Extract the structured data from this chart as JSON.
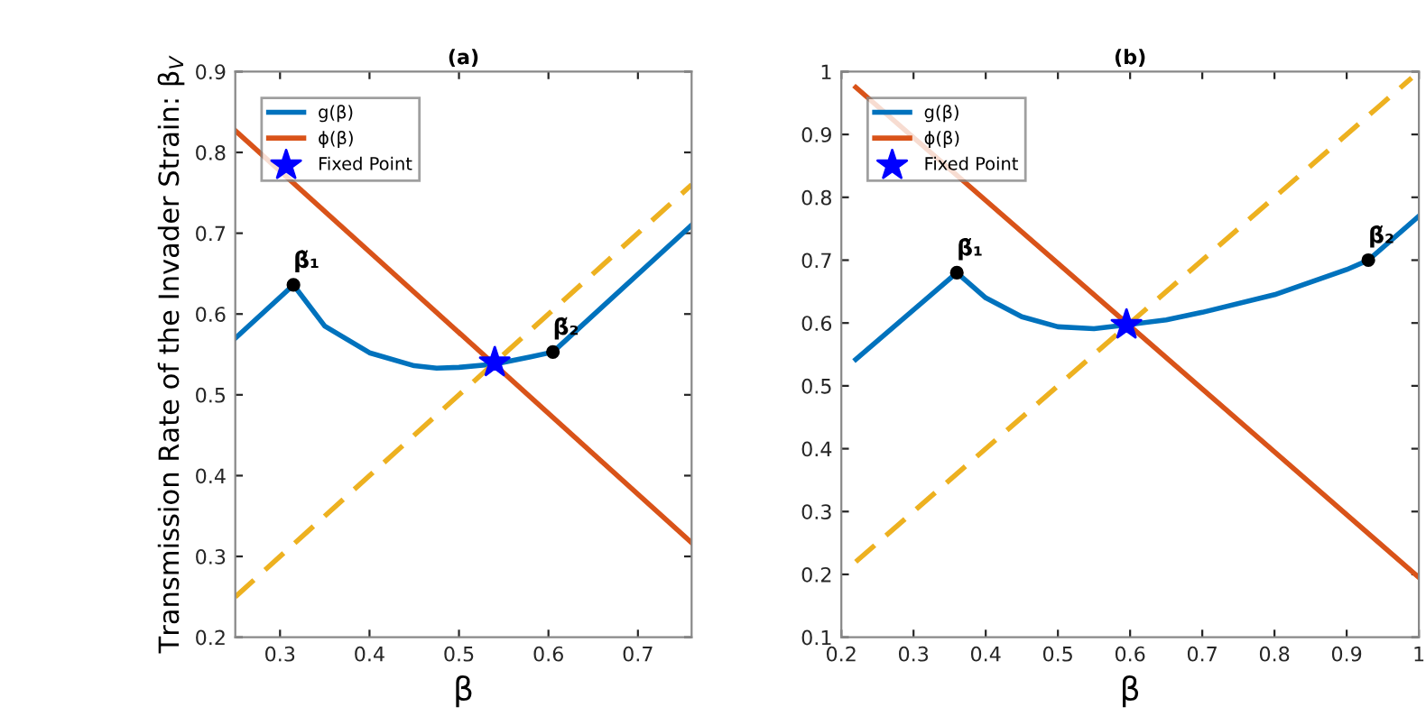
{
  "chart_data": [
    {
      "type": "line",
      "title": "(a)",
      "xlabel": "β",
      "ylabel": "Transmission Rate of the Invader Strain: β$_{V}$",
      "xlim": [
        0.25,
        0.76
      ],
      "ylim": [
        0.2,
        0.9
      ],
      "xticks": [
        0.3,
        0.4,
        0.5,
        0.6,
        0.7
      ],
      "yticks": [
        0.2,
        0.3,
        0.4,
        0.5,
        0.6,
        0.7,
        0.8,
        0.9
      ],
      "grid": false,
      "legend": "top left",
      "series": [
        {
          "name": "g(β)",
          "color": "#0072bd",
          "x": [
            0.25,
            0.315,
            0.35,
            0.4,
            0.45,
            0.475,
            0.5,
            0.54,
            0.58,
            0.605,
            0.76
          ],
          "values": [
            0.57,
            0.636,
            0.585,
            0.552,
            0.536,
            0.533,
            0.534,
            0.538,
            0.547,
            0.553,
            0.71
          ]
        },
        {
          "name": "ϕ(β)",
          "color": "#d95319",
          "x": [
            0.25,
            0.76
          ],
          "values": [
            0.827,
            0.317
          ]
        },
        {
          "color": "#edb120",
          "line_style": "dashed",
          "x": [
            0.25,
            0.76
          ],
          "values": [
            0.25,
            0.76
          ]
        },
        {
          "type": "scatter",
          "name": "Fixed Point",
          "marker": "star",
          "color": "#0000ff",
          "x": [
            0.54
          ],
          "values": [
            0.54
          ]
        },
        {
          "type": "scatter",
          "marker": "circle",
          "color": "#000000",
          "x": [
            0.315,
            0.605
          ],
          "values": [
            0.636,
            0.553
          ]
        }
      ],
      "annotations": [
        {
          "text": "β̃₁",
          "x": 0.315,
          "y": 0.636
        },
        {
          "text": "β̃₂",
          "x": 0.605,
          "y": 0.553
        }
      ]
    },
    {
      "type": "line",
      "title": "(b)",
      "xlabel": "β",
      "xlim": [
        0.2,
        1
      ],
      "ylim": [
        0.1,
        1
      ],
      "xticks": [
        0.2,
        0.3,
        0.4,
        0.5,
        0.6,
        0.7,
        0.8,
        0.9,
        1
      ],
      "yticks": [
        0.1,
        0.2,
        0.3,
        0.4,
        0.5,
        0.6,
        0.7,
        0.8,
        0.9,
        1
      ],
      "grid": false,
      "legend": "top left",
      "series": [
        {
          "name": "g(β)",
          "color": "#0072bd",
          "x": [
            0.22,
            0.36,
            0.4,
            0.45,
            0.5,
            0.55,
            0.595,
            0.65,
            0.7,
            0.8,
            0.9,
            0.93,
            1.0
          ],
          "values": [
            0.542,
            0.68,
            0.64,
            0.61,
            0.594,
            0.591,
            0.597,
            0.605,
            0.617,
            0.645,
            0.685,
            0.7,
            0.77
          ]
        },
        {
          "name": "ϕ(β)",
          "color": "#d95319",
          "x": [
            0.22,
            1.0
          ],
          "values": [
            0.975,
            0.195
          ]
        },
        {
          "color": "#edb120",
          "line_style": "dashed",
          "x": [
            0.22,
            0.99
          ],
          "values": [
            0.22,
            0.99
          ]
        },
        {
          "type": "scatter",
          "name": "Fixed Point",
          "marker": "star",
          "color": "#0000ff",
          "x": [
            0.595
          ],
          "values": [
            0.597
          ]
        },
        {
          "type": "scatter",
          "marker": "circle",
          "color": "#000000",
          "x": [
            0.36,
            0.93
          ],
          "values": [
            0.68,
            0.7
          ]
        }
      ],
      "annotations": [
        {
          "text": "β̃₁",
          "x": 0.36,
          "y": 0.68
        },
        {
          "text": "β̃₂",
          "x": 0.93,
          "y": 0.7
        }
      ]
    }
  ]
}
